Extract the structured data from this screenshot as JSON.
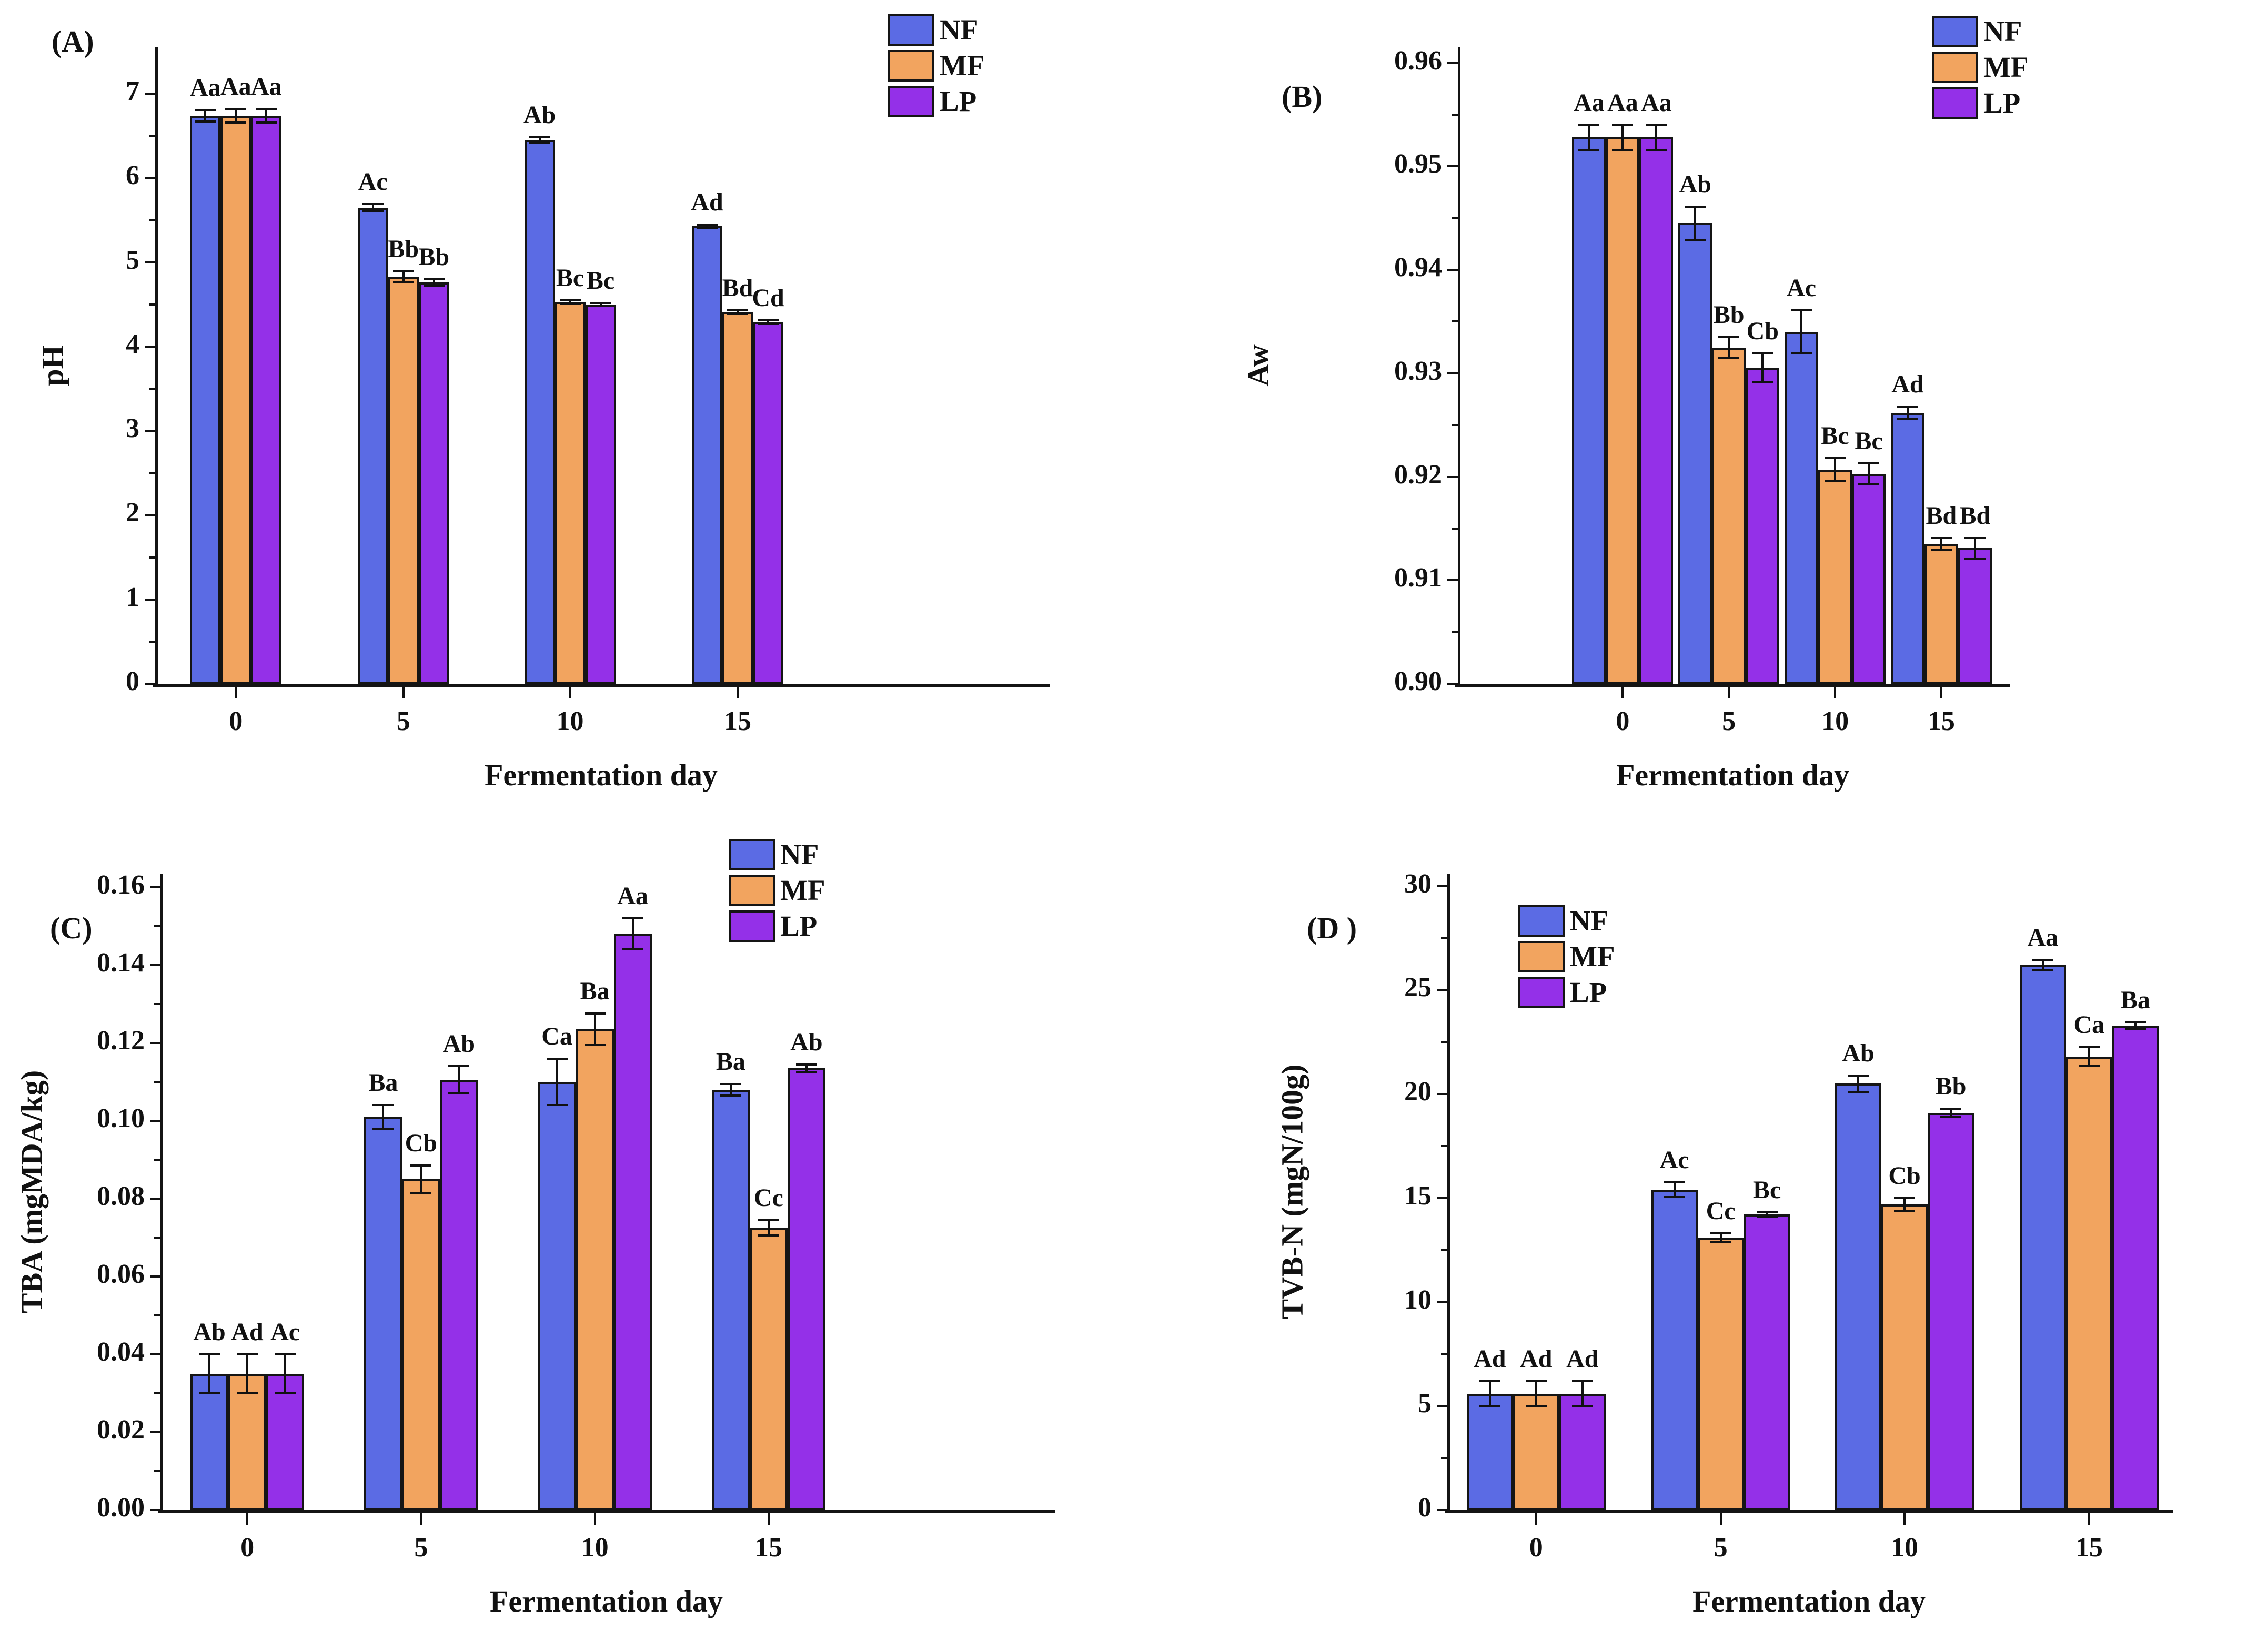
{
  "figure": {
    "xlabel": "Fermentation day",
    "categories": [
      "0",
      "5",
      "10",
      "15"
    ],
    "legend": [
      "NF",
      "MF",
      "LP"
    ],
    "colors": {
      "NF": "#5b6be4",
      "MF": "#f2a45f",
      "LP": "#9430e8",
      "axis": "#141414",
      "background": "#ffffff"
    }
  },
  "chart_data": [
    {
      "id": "A",
      "type": "bar",
      "panel_label": "(A)",
      "ylabel": "pH",
      "xlabel": "Fermentation day",
      "categories": [
        "0",
        "5",
        "10",
        "15"
      ],
      "ylim": [
        0,
        7.55
      ],
      "yticks": [
        "0",
        "1",
        "2",
        "3",
        "4",
        "5",
        "6",
        "7"
      ],
      "ytick_values": [
        0,
        1,
        2,
        3,
        4,
        5,
        6,
        7
      ],
      "minor_step": 0.5,
      "legend_position": "top-right",
      "series": [
        {
          "name": "NF",
          "values": [
            6.74,
            5.65,
            6.45,
            5.43
          ],
          "errors": [
            0.07,
            0.04,
            0.03,
            0.02
          ],
          "labels": [
            "Aa",
            "Ac",
            "Ab",
            "Ad"
          ]
        },
        {
          "name": "MF",
          "values": [
            6.74,
            4.83,
            4.53,
            4.41
          ],
          "errors": [
            0.08,
            0.06,
            0.02,
            0.02
          ],
          "labels": [
            "Aa",
            "Bb",
            "Bc",
            "Bd"
          ]
        },
        {
          "name": "LP",
          "values": [
            6.74,
            4.76,
            4.5,
            4.29
          ],
          "errors": [
            0.08,
            0.04,
            0.02,
            0.02
          ],
          "labels": [
            "Aa",
            "Bb",
            "Bc",
            "Cd"
          ]
        }
      ]
    },
    {
      "id": "B",
      "type": "bar",
      "panel_label": "(B)",
      "ylabel": "Aw",
      "xlabel": "Fermentation day",
      "categories": [
        "0",
        "5",
        "10",
        "15"
      ],
      "ylim": [
        0.9,
        0.9615
      ],
      "yticks": [
        "0.90",
        "0.91",
        "0.92",
        "0.93",
        "0.94",
        "0.95",
        "0.96"
      ],
      "ytick_values": [
        0.9,
        0.91,
        0.92,
        0.93,
        0.94,
        0.95,
        0.96
      ],
      "minor_step": 0.005,
      "legend_position": "top-right",
      "series": [
        {
          "name": "NF",
          "values": [
            0.9528,
            0.9445,
            0.934,
            0.9262
          ],
          "errors": [
            0.0012,
            0.0016,
            0.0021,
            0.0006
          ],
          "labels": [
            "Aa",
            "Ab",
            "Ac",
            "Ad"
          ]
        },
        {
          "name": "MF",
          "values": [
            0.9528,
            0.9325,
            0.9207,
            0.9135
          ],
          "errors": [
            0.0012,
            0.001,
            0.0011,
            0.0006
          ],
          "labels": [
            "Aa",
            "Bb",
            "Bc",
            "Bd"
          ]
        },
        {
          "name": "LP",
          "values": [
            0.9528,
            0.9305,
            0.9203,
            0.9131
          ],
          "errors": [
            0.0012,
            0.0014,
            0.001,
            0.001
          ],
          "labels": [
            "Aa",
            "Cb",
            "Bc",
            "Bd"
          ]
        }
      ]
    },
    {
      "id": "C",
      "type": "bar",
      "panel_label": "(C)",
      "ylabel": "TBA (mgMDA/kg)",
      "xlabel": "Fermentation day",
      "categories": [
        "0",
        "5",
        "10",
        "15"
      ],
      "ylim": [
        0,
        0.1635
      ],
      "yticks": [
        "0.00",
        "0.02",
        "0.04",
        "0.06",
        "0.08",
        "0.10",
        "0.12",
        "0.14",
        "0.16"
      ],
      "ytick_values": [
        0,
        0.02,
        0.04,
        0.06,
        0.08,
        0.1,
        0.12,
        0.14,
        0.16
      ],
      "minor_step": 0.01,
      "legend_position": "top-right",
      "series": [
        {
          "name": "NF",
          "values": [
            0.035,
            0.101,
            0.11,
            0.108
          ],
          "errors": [
            0.005,
            0.003,
            0.006,
            0.0015
          ],
          "labels": [
            "Ab",
            "Ba",
            "Ca",
            "Ba"
          ]
        },
        {
          "name": "MF",
          "values": [
            0.035,
            0.085,
            0.1235,
            0.0725
          ],
          "errors": [
            0.005,
            0.0035,
            0.004,
            0.002
          ],
          "labels": [
            "Ad",
            "Cb",
            "Ba",
            "Cc"
          ]
        },
        {
          "name": "LP",
          "values": [
            0.035,
            0.1105,
            0.148,
            0.1135
          ],
          "errors": [
            0.005,
            0.0035,
            0.004,
            0.001
          ],
          "labels": [
            "Ac",
            "Ab",
            "Aa",
            "Ab"
          ]
        }
      ]
    },
    {
      "id": "D",
      "type": "bar",
      "panel_label": "(D )",
      "ylabel": "TVB-N (mgN/100g)",
      "xlabel": "Fermentation day",
      "categories": [
        "0",
        "5",
        "10",
        "15"
      ],
      "ylim": [
        0,
        30.6
      ],
      "yticks": [
        "0",
        "5",
        "10",
        "15",
        "20",
        "25",
        "30"
      ],
      "ytick_values": [
        0,
        5,
        10,
        15,
        20,
        25,
        30
      ],
      "minor_step": 2.5,
      "legend_position": "top-left",
      "series": [
        {
          "name": "NF",
          "values": [
            5.6,
            15.4,
            20.5,
            26.2
          ],
          "errors": [
            0.6,
            0.35,
            0.4,
            0.25
          ],
          "labels": [
            "Ad",
            "Ac",
            "Ab",
            "Aa"
          ]
        },
        {
          "name": "MF",
          "values": [
            5.6,
            13.1,
            14.7,
            21.8
          ],
          "errors": [
            0.6,
            0.2,
            0.3,
            0.45
          ],
          "labels": [
            "Ad",
            "Cc",
            "Cb",
            "Ca"
          ]
        },
        {
          "name": "LP",
          "values": [
            5.6,
            14.2,
            19.1,
            23.3
          ],
          "errors": [
            0.6,
            0.12,
            0.2,
            0.15
          ],
          "labels": [
            "Ad",
            "Bc",
            "Bb",
            "Ba"
          ]
        }
      ]
    }
  ]
}
